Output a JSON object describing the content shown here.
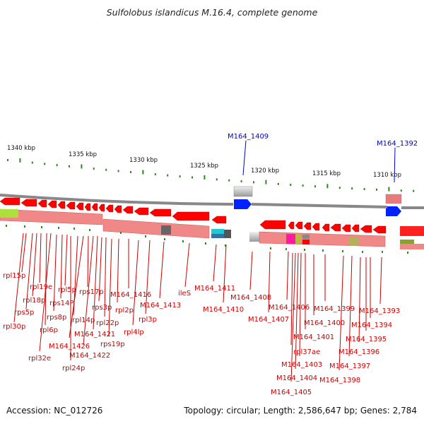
{
  "title": "Sulfolobus islandicus M.16.4, complete genome",
  "footer": {
    "accession": "Accession: NC_012726",
    "summary": "Topology: circular; Length: 2,586,647 bp; Genes: 2,784"
  },
  "ruler": {
    "unit": "kbp",
    "labels": [
      "1340 kbp",
      "1335 kbp",
      "1330 kbp",
      "1325 kbp",
      "1320 kbp",
      "1315 kbp",
      "1310 kbp"
    ]
  },
  "colors": {
    "gene_red": "#ff0000",
    "feature_pink": "#f08888",
    "label_red": "#cc0000",
    "label_blue": "#0000cc",
    "tick_green": "#2a8a1a",
    "backbone": "#8a8a8a"
  },
  "highlighted_genes": [
    "M164_1409",
    "M164_1392"
  ],
  "gene_labels": [
    "rpl15p",
    "rps5p",
    "rpl30p",
    "rpl18p",
    "rpl19e",
    "rpl6p",
    "rpl32e",
    "rps8p",
    "rps14P",
    "rpl5p",
    "rpl24p",
    "rpl14p",
    "M164_1426",
    "rps17p",
    "M164_1422",
    "M164_1421",
    "rps3p",
    "rpl22p",
    "rps19p",
    "rpl2p",
    "M164_1416",
    "rpl4lp",
    "rpl3p",
    "M164_1413",
    "ileS",
    "M164_1411",
    "M164_1410",
    "M164_1408",
    "M164_1407",
    "M164_1406",
    "rpl37ae",
    "M164_1405",
    "M164_1404",
    "M164_1403",
    "M164_1401",
    "M164_1400",
    "M164_1399",
    "M164_1398",
    "M164_1397",
    "M164_1396",
    "M164_1395",
    "M164_1394",
    "M164_1393"
  ]
}
